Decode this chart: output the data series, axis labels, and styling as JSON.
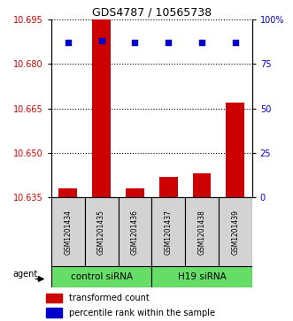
{
  "title": "GDS4787 / 10565738",
  "samples": [
    "GSM1201434",
    "GSM1201435",
    "GSM1201436",
    "GSM1201437",
    "GSM1201438",
    "GSM1201439"
  ],
  "bar_values": [
    10.638,
    10.695,
    10.638,
    10.642,
    10.643,
    10.667
  ],
  "percentile_values": [
    87,
    88,
    87,
    87,
    87,
    87
  ],
  "ylim_left": [
    10.635,
    10.695
  ],
  "ylim_right": [
    0,
    100
  ],
  "yticks_left": [
    10.635,
    10.65,
    10.665,
    10.68,
    10.695
  ],
  "yticks_right": [
    0,
    25,
    50,
    75,
    100
  ],
  "ytick_labels_right": [
    "0",
    "25",
    "50",
    "75",
    "100%"
  ],
  "bar_color": "#cc0000",
  "dot_color": "#0000cc",
  "group_labels": [
    "control siRNA",
    "H19 siRNA"
  ],
  "agent_label": "agent",
  "legend_bar_label": "transformed count",
  "legend_dot_label": "percentile rank within the sample",
  "bar_baseline": 10.635,
  "left_tick_color": "#cc0000",
  "right_tick_color": "#0000cc",
  "sample_bg_color": "#d3d3d3",
  "group_color": "#66dd66",
  "title_fontsize": 9,
  "tick_fontsize": 7,
  "sample_fontsize": 5.5,
  "group_fontsize": 7.5,
  "legend_fontsize": 7
}
